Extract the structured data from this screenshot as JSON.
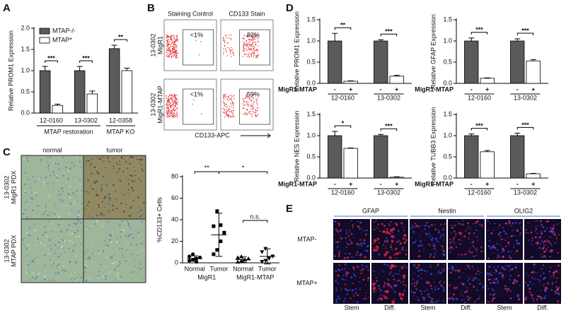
{
  "panel_labels": [
    "A",
    "B",
    "C",
    "D",
    "E"
  ],
  "chart_data": [
    {
      "type": "bar",
      "y_label": "Relative PROM1 Expression",
      "categories": [
        "12-0160",
        "13-0302",
        "12-0358"
      ],
      "group_labels": [
        "MTAP restoration",
        "MTAP KO"
      ],
      "series": [
        {
          "name": "MTAP-/-",
          "color": "#5a5a5a",
          "values": [
            1.0,
            1.0,
            1.52
          ],
          "errors": [
            0.1,
            0.1,
            0.08
          ]
        },
        {
          "name": "MTAP*",
          "color": "#ffffff",
          "values": [
            0.18,
            0.45,
            1.0
          ],
          "errors": [
            0.03,
            0.07,
            0.06
          ]
        }
      ],
      "annotations": [
        "***",
        "***",
        "**"
      ],
      "ylim": [
        0,
        2
      ],
      "yticks": [
        {
          "value": 0,
          "label": "0.0"
        },
        0.5,
        {
          "value": 1,
          "label": "1.0"
        },
        1.5,
        {
          "value": 2,
          "label": "2.0"
        }
      ]
    },
    {
      "type": "scatter",
      "y_label": "%CD133+ Cells",
      "categories": [
        "Normal",
        "Tumor",
        "Normal",
        "Tumor"
      ],
      "group_labels": [
        "MigR1",
        "MigR1-MTAP"
      ],
      "values": [
        [
          2,
          3,
          4,
          5,
          6,
          8,
          1
        ],
        [
          8,
          12,
          20,
          28,
          34,
          48,
          35
        ],
        [
          1,
          2,
          3,
          4,
          5,
          6
        ],
        [
          1,
          2,
          4,
          6,
          10,
          13
        ]
      ],
      "means": [
        4,
        26,
        3,
        6
      ],
      "errors": [
        2.5,
        20,
        2.5,
        7
      ],
      "markers": [
        "circle",
        "square",
        "triangle",
        "triangle-down"
      ],
      "annotations": [
        "**",
        "*",
        "n.s."
      ],
      "ylim": [
        0,
        80
      ],
      "yticks": [
        0,
        20,
        40,
        60,
        80
      ]
    },
    {
      "type": "bar",
      "y_label": "Relative PROM1 Expression",
      "x_row_label": "MigR1-MTAP",
      "categories": [
        "12-0160",
        "13-0302"
      ],
      "series": [
        {
          "name": "-",
          "color": "#5a5a5a",
          "values": [
            1.0,
            1.0
          ],
          "errors": [
            0.18,
            0.03
          ]
        },
        {
          "name": "+",
          "color": "#ffffff",
          "values": [
            0.05,
            0.17
          ],
          "errors": [
            0.01,
            0.02
          ]
        }
      ],
      "annotations": [
        "**",
        "***"
      ],
      "ylim": [
        0,
        1.5
      ],
      "yticks": [
        {
          "value": 0,
          "label": "0.0"
        },
        0.5,
        {
          "value": 1,
          "label": "1.0"
        },
        1.5
      ]
    },
    {
      "type": "bar",
      "y_label": "Relative GFAP Expression",
      "x_row_label": "MigR1-MTAP",
      "categories": [
        "12-0160",
        "13-0302"
      ],
      "series": [
        {
          "name": "-",
          "color": "#5a5a5a",
          "values": [
            1.0,
            1.0
          ],
          "errors": [
            0.07,
            0.05
          ]
        },
        {
          "name": "+",
          "color": "#ffffff",
          "values": [
            0.12,
            0.53
          ],
          "errors": [
            0.01,
            0.03
          ]
        }
      ],
      "annotations": [
        "***",
        "***"
      ],
      "ylim": [
        0,
        1.5
      ],
      "yticks": [
        {
          "value": 0,
          "label": "0.0"
        },
        0.5,
        {
          "value": 1,
          "label": "1.0"
        },
        1.5
      ]
    },
    {
      "type": "bar",
      "y_label": "Relative NES Expression",
      "x_row_label": "MigR1-MTAP",
      "categories": [
        "12-0160",
        "13-0302"
      ],
      "series": [
        {
          "name": "-",
          "color": "#5a5a5a",
          "values": [
            1.0,
            1.0
          ],
          "errors": [
            0.1,
            0.03
          ]
        },
        {
          "name": "+",
          "color": "#ffffff",
          "values": [
            0.7,
            0.02
          ],
          "errors": [
            0.01,
            0.01
          ]
        }
      ],
      "annotations": [
        "*",
        "***"
      ],
      "ylim": [
        0,
        1.5
      ],
      "yticks": [
        {
          "value": 0,
          "label": "0.0"
        },
        0.5,
        {
          "value": 1,
          "label": "1.0"
        },
        1.5
      ]
    },
    {
      "type": "bar",
      "y_label": "Relative TUBB3 Expression",
      "x_row_label": "MigR1-MTAP",
      "categories": [
        "12-0160",
        "13-0302"
      ],
      "series": [
        {
          "name": "-",
          "color": "#5a5a5a",
          "values": [
            1.0,
            1.0
          ],
          "errors": [
            0.04,
            0.06
          ]
        },
        {
          "name": "+",
          "color": "#ffffff",
          "values": [
            0.62,
            0.1
          ],
          "errors": [
            0.03,
            0.01
          ]
        }
      ],
      "annotations": [
        "***",
        "***"
      ],
      "ylim": [
        0,
        1.5
      ],
      "yticks": [
        {
          "value": 0,
          "label": "0.0"
        },
        0.5,
        {
          "value": 1,
          "label": "1.0"
        },
        1.5
      ]
    }
  ],
  "flow": {
    "column_titles": [
      "Staining Control",
      "CD133 Stain"
    ],
    "row_labels": [
      [
        "13-0302",
        "MigR1"
      ],
      [
        "13-0302",
        "MigR1-MTAP"
      ]
    ],
    "gate_labels": [
      [
        "<1%",
        "82%"
      ],
      [
        "<1%",
        "59%"
      ]
    ],
    "x_label": "CD133-APC"
  },
  "histology": {
    "column_titles": [
      "normal",
      "tumor"
    ],
    "row_labels": [
      [
        "13-0302",
        "MigR1 PDX"
      ],
      [
        "13-0302",
        "MTAP PDX"
      ]
    ]
  },
  "immunofluorescence": {
    "column_titles": [
      "GFAP",
      "Nestin",
      "OLIG2"
    ],
    "row_labels": [
      "MTAP-",
      "MTAP+"
    ],
    "condition_labels": [
      "Stem",
      "Diff.",
      "Stem",
      "Diff.",
      "Stem",
      "Diff."
    ]
  }
}
